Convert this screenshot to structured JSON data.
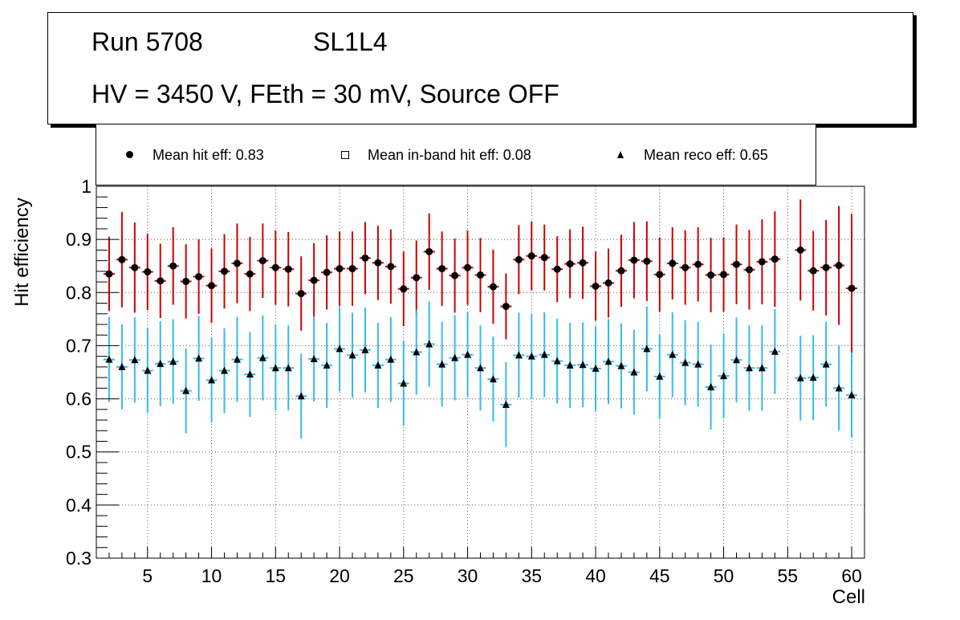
{
  "header": {
    "run": "Run 5708",
    "layer": "SL1L4",
    "conditions": "HV = 3450 V, FEth = 30 mV, Source OFF"
  },
  "legend": [
    {
      "marker": "circle",
      "label": "Mean hit  eff: 0.83"
    },
    {
      "marker": "open-square",
      "label": "Mean in-band hit eff: 0.08"
    },
    {
      "marker": "triangle",
      "label": "Mean reco eff: 0.65"
    }
  ],
  "colors": {
    "hit_error": "#cc0000",
    "reco_error": "#33bbee",
    "marker": "#000000",
    "grid": "#555555",
    "axis": "#000000"
  },
  "chart_data": {
    "type": "scatter",
    "title": "",
    "xlabel": "Cell",
    "ylabel": "Hit efficiency",
    "xlim": [
      1,
      61
    ],
    "ylim": [
      0.3,
      1.0
    ],
    "x_ticks": [
      5,
      10,
      15,
      20,
      25,
      30,
      35,
      40,
      45,
      50,
      55,
      60
    ],
    "y_ticks": [
      0.3,
      0.4,
      0.5,
      0.6,
      0.7,
      0.8,
      0.9,
      1
    ],
    "grid": true,
    "series": [
      {
        "name": "Mean hit  eff: 0.83",
        "marker": "circle",
        "error_color": "#cc0000",
        "x": [
          2,
          3,
          4,
          5,
          6,
          7,
          8,
          9,
          10,
          11,
          12,
          13,
          14,
          15,
          16,
          17,
          18,
          19,
          20,
          21,
          22,
          23,
          24,
          25,
          26,
          27,
          28,
          29,
          30,
          31,
          32,
          33,
          34,
          35,
          36,
          37,
          38,
          39,
          40,
          41,
          42,
          43,
          44,
          45,
          46,
          47,
          48,
          49,
          50,
          51,
          52,
          53,
          54,
          56,
          57,
          58,
          59,
          60
        ],
        "values": [
          0.835,
          0.862,
          0.847,
          0.839,
          0.822,
          0.85,
          0.821,
          0.83,
          0.813,
          0.84,
          0.855,
          0.835,
          0.86,
          0.847,
          0.844,
          0.798,
          0.823,
          0.838,
          0.845,
          0.845,
          0.865,
          0.856,
          0.849,
          0.807,
          0.828,
          0.877,
          0.845,
          0.832,
          0.847,
          0.833,
          0.811,
          0.774,
          0.862,
          0.869,
          0.866,
          0.844,
          0.854,
          0.856,
          0.812,
          0.818,
          0.841,
          0.861,
          0.859,
          0.834,
          0.855,
          0.847,
          0.853,
          0.833,
          0.834,
          0.853,
          0.843,
          0.858,
          0.863,
          0.88,
          0.841,
          0.847,
          0.851,
          0.808
        ],
        "errors": [
          0.07,
          0.09,
          0.085,
          0.072,
          0.07,
          0.073,
          0.07,
          0.07,
          0.07,
          0.07,
          0.075,
          0.07,
          0.07,
          0.07,
          0.07,
          0.07,
          0.07,
          0.07,
          0.07,
          0.07,
          0.068,
          0.07,
          0.07,
          0.07,
          0.07,
          0.072,
          0.07,
          0.07,
          0.07,
          0.07,
          0.07,
          0.062,
          0.065,
          0.065,
          0.062,
          0.062,
          0.065,
          0.068,
          0.065,
          0.065,
          0.068,
          0.072,
          0.075,
          0.07,
          0.068,
          0.07,
          0.07,
          0.07,
          0.07,
          0.075,
          0.075,
          0.08,
          0.09,
          0.095,
          0.075,
          0.09,
          0.112,
          0.14
        ]
      },
      {
        "name": "Mean reco eff: 0.65",
        "marker": "triangle",
        "error_color": "#33bbee",
        "x": [
          2,
          3,
          4,
          5,
          6,
          7,
          8,
          9,
          10,
          11,
          12,
          13,
          14,
          15,
          16,
          17,
          18,
          19,
          20,
          21,
          22,
          23,
          24,
          25,
          26,
          27,
          28,
          29,
          30,
          31,
          32,
          33,
          34,
          35,
          36,
          37,
          38,
          39,
          40,
          41,
          42,
          43,
          44,
          45,
          46,
          47,
          48,
          49,
          50,
          51,
          52,
          53,
          54,
          56,
          57,
          58,
          59,
          60
        ],
        "values": [
          0.674,
          0.66,
          0.673,
          0.653,
          0.666,
          0.67,
          0.615,
          0.676,
          0.635,
          0.653,
          0.674,
          0.646,
          0.677,
          0.658,
          0.658,
          0.605,
          0.675,
          0.663,
          0.694,
          0.682,
          0.692,
          0.663,
          0.674,
          0.629,
          0.688,
          0.703,
          0.665,
          0.677,
          0.683,
          0.658,
          0.637,
          0.589,
          0.682,
          0.68,
          0.683,
          0.671,
          0.663,
          0.664,
          0.657,
          0.67,
          0.662,
          0.65,
          0.694,
          0.642,
          0.683,
          0.668,
          0.665,
          0.622,
          0.643,
          0.673,
          0.658,
          0.658,
          0.689,
          0.639,
          0.64,
          0.665,
          0.62,
          0.607
        ]
      }
    ]
  }
}
